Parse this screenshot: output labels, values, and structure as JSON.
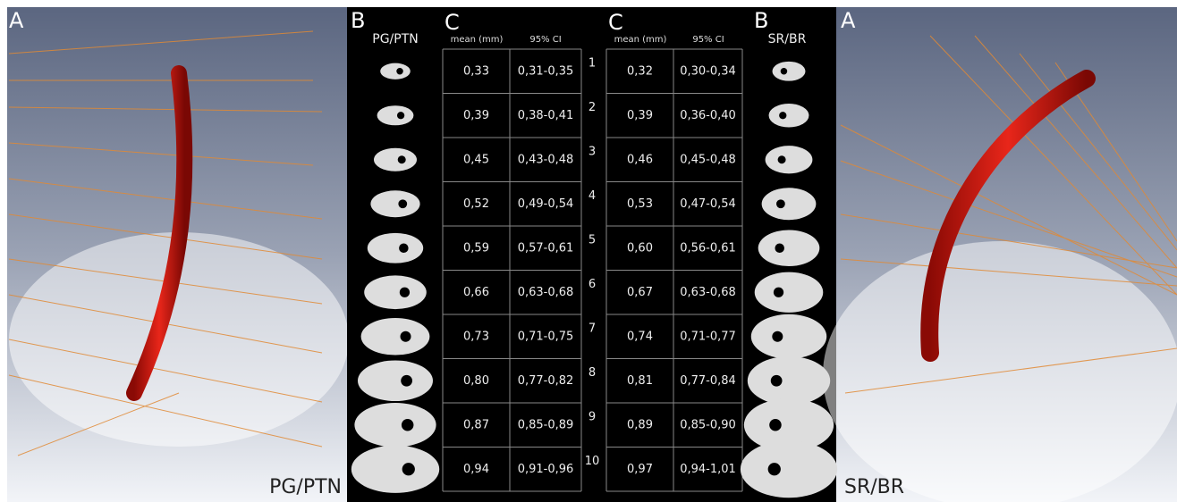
{
  "panels": {
    "left": {
      "label": "A",
      "caption": "PG/PTN"
    },
    "right": {
      "label": "A",
      "caption": "SR/BR"
    }
  },
  "center": {
    "left_b": {
      "label": "B",
      "title": "PG/PTN"
    },
    "left_c": {
      "label": "C",
      "headers": [
        "mean (mm)",
        "95% CI"
      ]
    },
    "right_c": {
      "label": "C",
      "headers": [
        "mean (mm)",
        "95% CI"
      ]
    },
    "right_b": {
      "label": "B",
      "title": "SR/BR"
    },
    "row_numbers": [
      "1",
      "2",
      "3",
      "4",
      "5",
      "6",
      "7",
      "8",
      "9",
      "10"
    ],
    "left_table": {
      "rows": [
        [
          "0,33",
          "0,31-0,35"
        ],
        [
          "0,39",
          "0,38-0,41"
        ],
        [
          "0,45",
          "0,43-0,48"
        ],
        [
          "0,52",
          "0,49-0,54"
        ],
        [
          "0,59",
          "0,57-0,61"
        ],
        [
          "0,66",
          "0,63-0,68"
        ],
        [
          "0,73",
          "0,71-0,75"
        ],
        [
          "0,80",
          "0,77-0,82"
        ],
        [
          "0,87",
          "0,85-0,89"
        ],
        [
          "0,94",
          "0,91-0,96"
        ]
      ]
    },
    "right_table": {
      "rows": [
        [
          "0,32",
          "0,30-0,34"
        ],
        [
          "0,39",
          "0,36-0,40"
        ],
        [
          "0,46",
          "0,45-0,48"
        ],
        [
          "0,53",
          "0,47-0,54"
        ],
        [
          "0,60",
          "0,56-0,61"
        ],
        [
          "0,67",
          "0,63-0,68"
        ],
        [
          "0,74",
          "0,71-0,77"
        ],
        [
          "0,81",
          "0,77-0,84"
        ],
        [
          "0,89",
          "0,85-0,90"
        ],
        [
          "0,97",
          "0,94-1,01"
        ]
      ]
    }
  }
}
